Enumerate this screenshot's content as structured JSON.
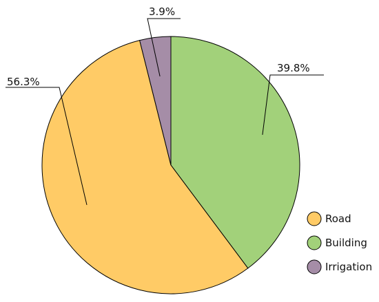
{
  "chart_data": {
    "type": "pie",
    "title": "",
    "labels": [
      "Road",
      "Building",
      "Irrigation"
    ],
    "values": [
      56.3,
      39.8,
      3.9
    ],
    "value_labels": [
      "56.3%",
      "39.8%",
      "3.9%"
    ],
    "colors": [
      "#FFCB66",
      "#A2D17A",
      "#A58DA7"
    ],
    "outline_color": "#000000",
    "legend_position": "bottom-right"
  }
}
